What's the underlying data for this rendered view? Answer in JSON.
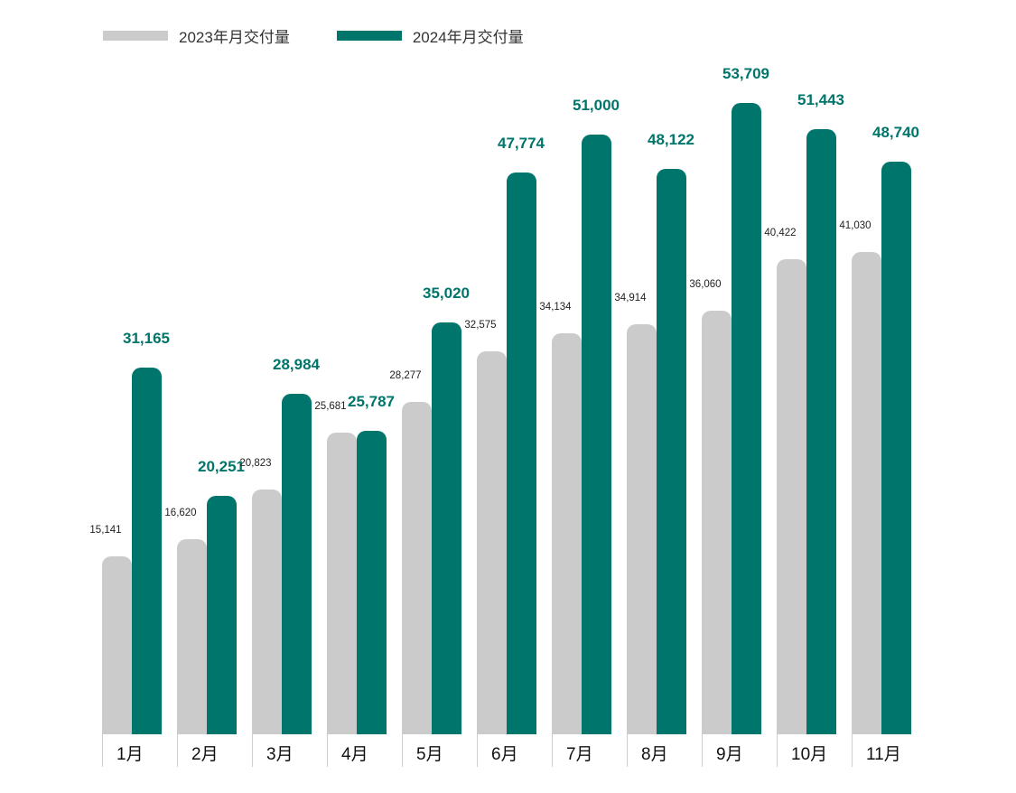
{
  "legend": {
    "series2023": {
      "label": "2023年月交付量",
      "color": "#cbcbcb"
    },
    "series2024": {
      "label": "2024年月交付量",
      "color": "#00756b"
    }
  },
  "chart_data": {
    "type": "bar",
    "title": "",
    "xlabel": "",
    "ylabel": "",
    "categories": [
      "1月",
      "2月",
      "3月",
      "4月",
      "5月",
      "6月",
      "7月",
      "8月",
      "9月",
      "10月",
      "11月"
    ],
    "series": [
      {
        "name": "2023年月交付量",
        "color": "#cbcbcb",
        "values": [
          15141,
          16620,
          20823,
          25681,
          28277,
          32575,
          34134,
          34914,
          36060,
          40422,
          41030
        ],
        "labels": [
          "15,141",
          "16,620",
          "20,823",
          "25,681",
          "28,277",
          "32,575",
          "34,134",
          "34,914",
          "36,060",
          "40,422",
          "41,030"
        ]
      },
      {
        "name": "2024年月交付量",
        "color": "#00756b",
        "values": [
          31165,
          20251,
          28984,
          25787,
          35020,
          47774,
          51000,
          48122,
          53709,
          51443,
          48740
        ],
        "labels": [
          "31,165",
          "20,251",
          "28,984",
          "25,787",
          "35,020",
          "47,774",
          "51,000",
          "48,122",
          "53,709",
          "51,443",
          "48,740"
        ]
      }
    ],
    "ylim": [
      0,
      55000
    ],
    "grid": false,
    "legend_position": "top-left",
    "data_labels": true
  }
}
